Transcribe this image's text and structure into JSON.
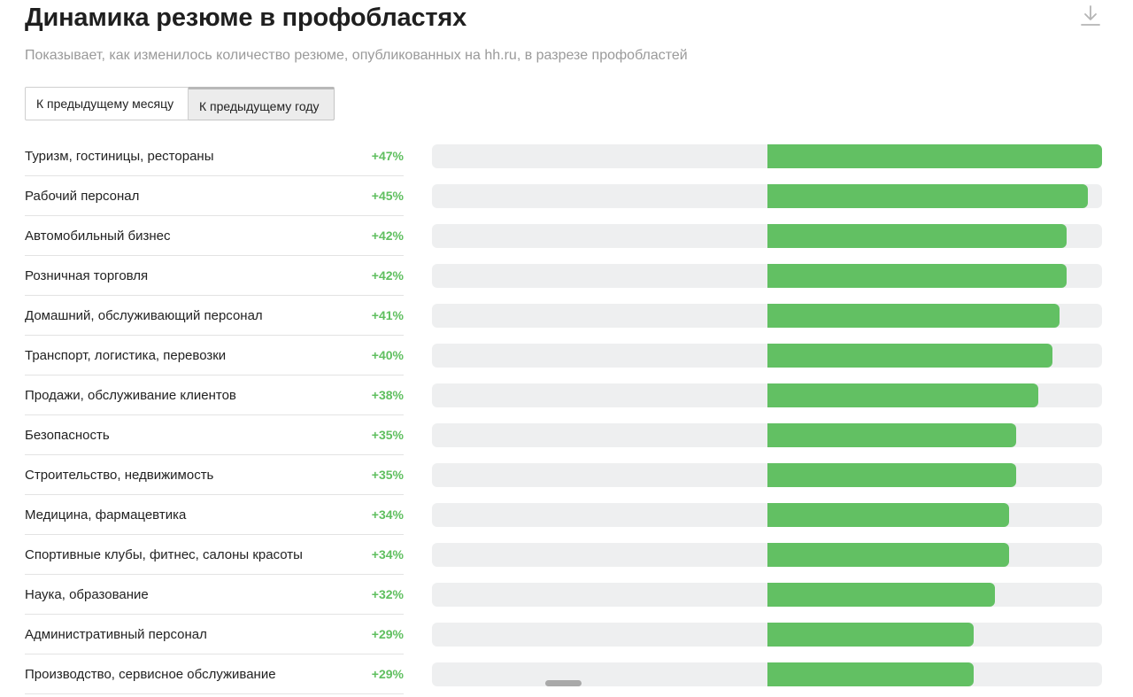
{
  "header": {
    "title": "Динамика резюме в профобластях",
    "subtitle": "Показывает, как изменилось количество резюме, опубликованных на hh.ru, в разрезе профобластей",
    "download_icon": "download-icon"
  },
  "tabs": [
    {
      "label": "К предыдущему месяцу",
      "active": false
    },
    {
      "label": "К предыдущему году",
      "active": true
    }
  ],
  "colors": {
    "bar": "#62c063",
    "track": "#eeeff0",
    "value_text": "#5fbf5f"
  },
  "chart_data": {
    "type": "bar",
    "orientation": "horizontal",
    "categories": [
      "Туризм, гостиницы, рестораны",
      "Рабочий персонал",
      "Автомобильный бизнес",
      "Розничная торговля",
      "Домашний, обслуживающий персонал",
      "Транспорт, логистика, перевозки",
      "Продажи, обслуживание клиентов",
      "Безопасность",
      "Строительство, недвижимость",
      "Медицина, фармацевтика",
      "Спортивные клубы, фитнес, салоны красоты",
      "Наука, образование",
      "Административный персонал",
      "Производство, сервисное обслуживание"
    ],
    "values": [
      47,
      45,
      42,
      42,
      41,
      40,
      38,
      35,
      35,
      34,
      34,
      32,
      29,
      29
    ],
    "labels": [
      "+47%",
      "+45%",
      "+42%",
      "+42%",
      "+41%",
      "+40%",
      "+38%",
      "+35%",
      "+35%",
      "+34%",
      "+34%",
      "+32%",
      "+29%",
      "+29%"
    ],
    "xlim": [
      -47,
      47
    ],
    "unit": "%"
  }
}
